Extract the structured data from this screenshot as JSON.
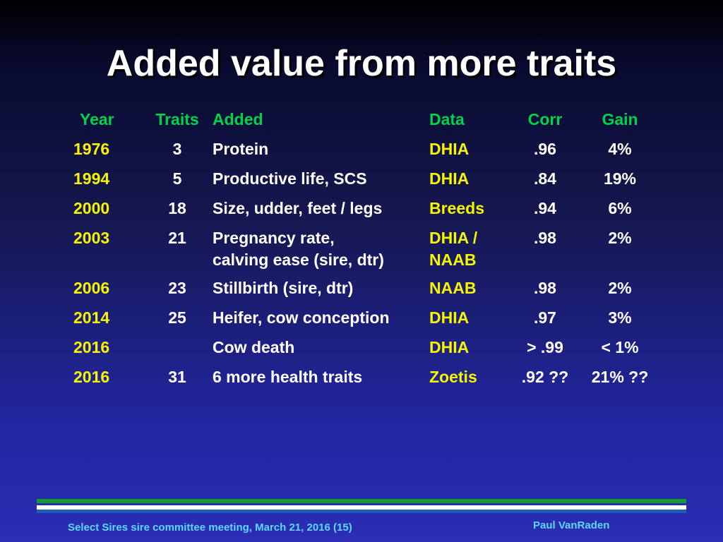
{
  "title": "Added value from more traits",
  "table": {
    "headers": [
      "Year",
      "Traits",
      "Added",
      "Data",
      "Corr",
      "Gain"
    ],
    "rows": [
      {
        "year": "1976",
        "traits": "3",
        "added": "Protein",
        "added2": "",
        "data": "DHIA",
        "data2": "",
        "corr": ".96",
        "gain": "4%"
      },
      {
        "year": "1994",
        "traits": "5",
        "added": "Productive life, SCS",
        "added2": "",
        "data": "DHIA",
        "data2": "",
        "corr": ".84",
        "gain": "19%"
      },
      {
        "year": "2000",
        "traits": "18",
        "added": "Size, udder, feet / legs",
        "added2": "",
        "data": "Breeds",
        "data2": "",
        "corr": ".94",
        "gain": "6%"
      },
      {
        "year": "2003",
        "traits": "21",
        "added": "Pregnancy rate,",
        "added2": "calving ease (sire, dtr)",
        "data": "DHIA /",
        "data2": "NAAB",
        "corr": ".98",
        "gain": "2%"
      },
      {
        "year": "2006",
        "traits": "23",
        "added": "Stillbirth (sire, dtr)",
        "added2": "",
        "data": "NAAB",
        "data2": "",
        "corr": ".98",
        "gain": "2%"
      },
      {
        "year": "2014",
        "traits": "25",
        "added": "Heifer, cow conception",
        "added2": "",
        "data": "DHIA",
        "data2": "",
        "corr": ".97",
        "gain": "3%"
      },
      {
        "year": "2016",
        "traits": "",
        "added": "Cow death",
        "added2": "",
        "data": "DHIA",
        "data2": "",
        "corr": "> .99",
        "gain": "< 1%"
      },
      {
        "year": "2016",
        "traits": "31",
        "added": "6 more health traits",
        "added2": "",
        "data": "Zoetis",
        "data2": "",
        "corr": ".92 ??",
        "gain": "21% ??"
      }
    ]
  },
  "footer": {
    "left": "Select Sires sire committee meeting, March 21, 2016 (15)",
    "right": "Paul VanRaden"
  },
  "colors": {
    "header_text": "#00d24a",
    "year_and_data_text": "#f6f600",
    "body_text": "#ffffff",
    "footer_text": "#5fd8ff",
    "rule_green": "#139a2c",
    "rule_blue": "#1c5fb0"
  }
}
